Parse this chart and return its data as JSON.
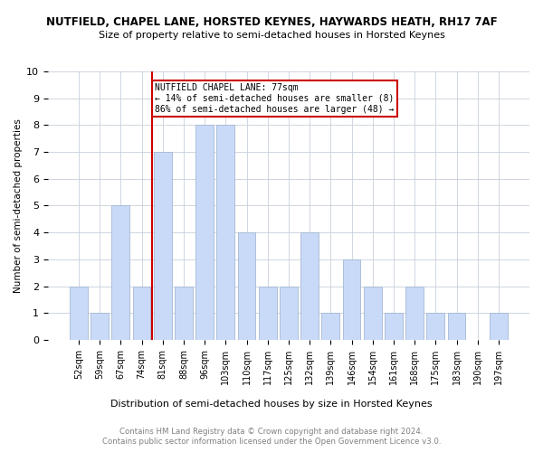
{
  "title_line1": "NUTFIELD, CHAPEL LANE, HORSTED KEYNES, HAYWARDS HEATH, RH17 7AF",
  "title_line2": "Size of property relative to semi-detached houses in Horsted Keynes",
  "xlabel": "Distribution of semi-detached houses by size in Horsted Keynes",
  "ylabel": "Number of semi-detached properties",
  "categories": [
    "52sqm",
    "59sqm",
    "67sqm",
    "74sqm",
    "81sqm",
    "88sqm",
    "96sqm",
    "103sqm",
    "110sqm",
    "117sqm",
    "125sqm",
    "132sqm",
    "139sqm",
    "146sqm",
    "154sqm",
    "161sqm",
    "168sqm",
    "175sqm",
    "183sqm",
    "190sqm",
    "197sqm"
  ],
  "values": [
    2,
    1,
    5,
    2,
    7,
    2,
    8,
    8,
    4,
    2,
    2,
    4,
    1,
    3,
    2,
    1,
    2,
    1,
    1,
    0,
    1
  ],
  "bar_color": "#c9daf8",
  "bar_edge_color": "#a4b8d4",
  "vline_x_index": 3.5,
  "vline_color": "#cc0000",
  "annotation_text": "NUTFIELD CHAPEL LANE: 77sqm\n← 14% of semi-detached houses are smaller (8)\n86% of semi-detached houses are larger (48) →",
  "annotation_box_color": "#cc0000",
  "ylim": [
    0,
    10
  ],
  "yticks": [
    0,
    1,
    2,
    3,
    4,
    5,
    6,
    7,
    8,
    9,
    10
  ],
  "footer_line1": "Contains HM Land Registry data © Crown copyright and database right 2024.",
  "footer_line2": "Contains public sector information licensed under the Open Government Licence v3.0.",
  "bg_color": "#ffffff",
  "grid_color": "#c8d0dc"
}
